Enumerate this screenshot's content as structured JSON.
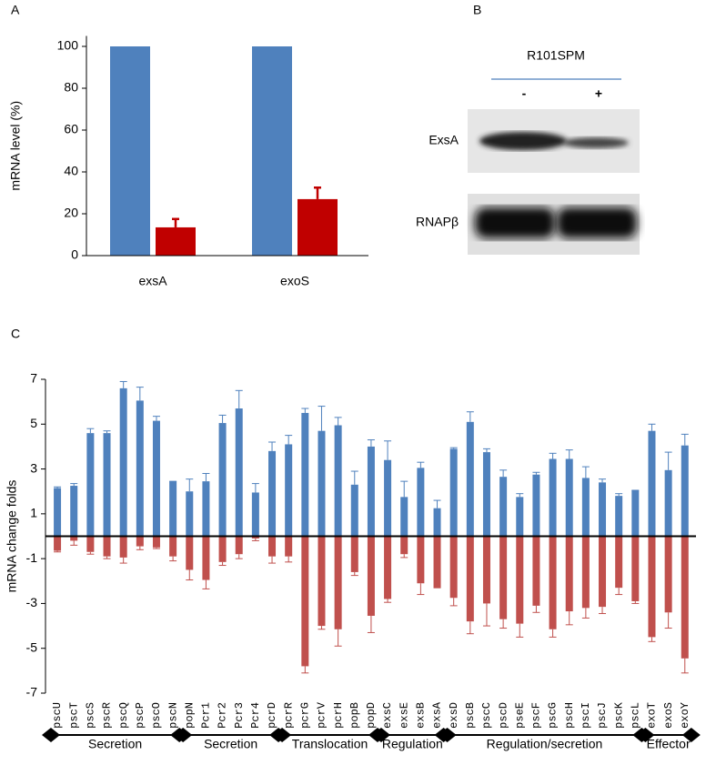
{
  "chart_data": [
    {
      "type": "bar",
      "label": "A",
      "ylabel": "mRNA level (%)",
      "categories": [
        "exsA",
        "exoS"
      ],
      "series": [
        {
          "color": "#4f81bd",
          "values": [
            100,
            100
          ]
        },
        {
          "color": "#c00000",
          "values": [
            13.5,
            27
          ],
          "errors": [
            4,
            5.5
          ]
        }
      ],
      "ylim": [
        0,
        105
      ],
      "yticks": [
        0,
        20,
        40,
        60,
        80,
        100
      ]
    },
    {
      "type": "bar",
      "label": "C",
      "ylabel": "mRNA change folds",
      "groups": [
        {
          "label": "Secretion",
          "categories": [
            "pscU",
            "pscT",
            "pscS",
            "pscR",
            "pscQ",
            "pscP",
            "pscO",
            "pscN"
          ]
        },
        {
          "label": "Secretion",
          "categories": [
            "popN",
            "Pcr1",
            "Pcr2",
            "Pcr3",
            "Pcr4",
            "pcrD"
          ]
        },
        {
          "label": "Translocation",
          "categories": [
            "pcrR",
            "pcrG",
            "pcrV",
            "pcrH",
            "popB",
            "popD"
          ]
        },
        {
          "label": "Regulation",
          "categories": [
            "exsC",
            "exsE",
            "exsB",
            "exsA"
          ]
        },
        {
          "label": "Regulation/secretion",
          "categories": [
            "exsD",
            "pscB",
            "pscC",
            "pscD",
            "pseE",
            "pscF",
            "pscG",
            "pscH",
            "pscI",
            "pscJ",
            "pscK",
            "pscL"
          ]
        },
        {
          "label": "Effector",
          "categories": [
            "exoT",
            "exoS",
            "exoY"
          ]
        }
      ],
      "series": [
        {
          "color": "#4f81bd",
          "values": [
            2.15,
            2.25,
            4.6,
            4.6,
            6.6,
            6.05,
            5.15,
            2.45,
            2.0,
            2.45,
            5.05,
            5.7,
            1.95,
            3.8,
            4.1,
            5.5,
            4.7,
            4.95,
            2.3,
            4.0,
            3.4,
            1.75,
            3.05,
            1.25,
            3.9,
            5.1,
            3.75,
            2.65,
            1.75,
            2.75,
            3.45,
            3.45,
            2.6,
            2.4,
            1.8,
            2.05,
            4.7,
            2.95,
            4.05
          ],
          "errors": [
            0.05,
            0.1,
            0.2,
            0.1,
            0.3,
            0.6,
            0.2,
            0,
            0.55,
            0.35,
            0.35,
            0.8,
            0.4,
            0.4,
            0.4,
            0.2,
            1.1,
            0.35,
            0.6,
            0.3,
            0.85,
            0.7,
            0.25,
            0.35,
            0.05,
            0.45,
            0.15,
            0.3,
            0.15,
            0.1,
            0.25,
            0.4,
            0.5,
            0.15,
            0.1,
            0,
            0.3,
            0.8,
            0.5
          ]
        },
        {
          "color": "#c0504d",
          "values": [
            -0.65,
            -0.2,
            -0.7,
            -0.9,
            -0.95,
            -0.45,
            -0.5,
            -0.9,
            -1.5,
            -1.95,
            -1.15,
            -0.8,
            -0.1,
            -0.9,
            -0.9,
            -5.8,
            -4.0,
            -4.15,
            -1.6,
            -3.55,
            -2.8,
            -0.8,
            -2.1,
            -2.3,
            -2.75,
            -3.8,
            -3.0,
            -3.7,
            -3.9,
            -3.1,
            -4.15,
            -3.35,
            -3.2,
            -3.15,
            -2.3,
            -2.9,
            -4.5,
            -3.4,
            -5.45
          ],
          "errors": [
            0.05,
            0.2,
            0.1,
            0.1,
            0.25,
            0.15,
            0.05,
            0.2,
            0.45,
            0.4,
            0.15,
            0.2,
            0.1,
            0.3,
            0.25,
            0.3,
            0.15,
            0.75,
            0.15,
            0.75,
            0.15,
            0.15,
            0.5,
            0,
            0.35,
            0.55,
            1.0,
            0.4,
            0.6,
            0.3,
            0.35,
            0.6,
            0.45,
            0.3,
            0.3,
            0.1,
            0.2,
            0.7,
            0.65
          ]
        }
      ],
      "ylim": [
        -7,
        7
      ],
      "yticks": [
        -7,
        -5,
        -3,
        -1,
        1,
        3,
        5,
        7
      ]
    }
  ],
  "blot": {
    "label": "B",
    "header": "R101SPM",
    "lanes": [
      "-",
      "+"
    ],
    "rows": [
      "ExsA",
      "RNAPβ"
    ]
  }
}
